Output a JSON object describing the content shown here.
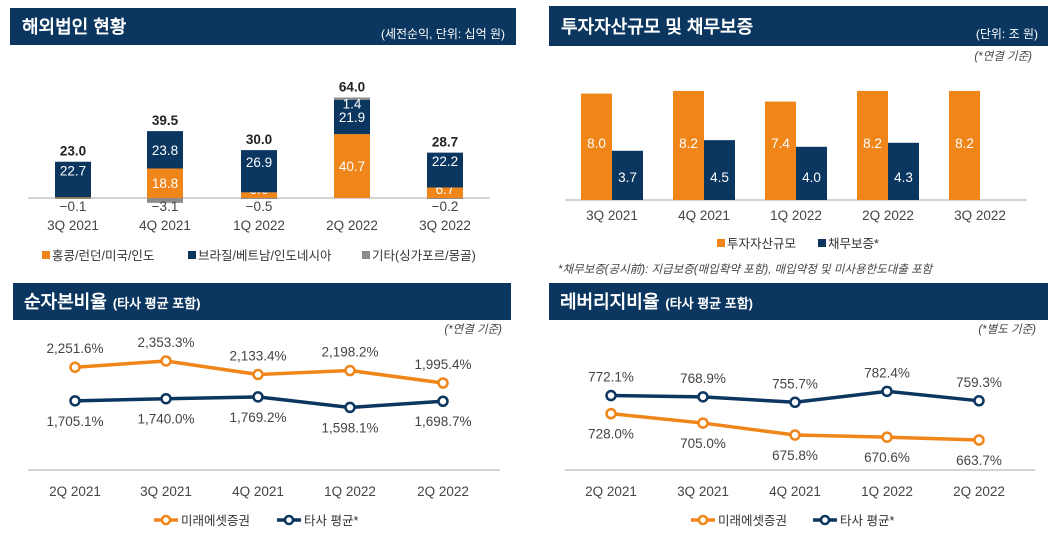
{
  "colors": {
    "orange": "#f0851a",
    "navy": "#0b365f",
    "gray": "#8c8c8c"
  },
  "chart_data": [
    {
      "type": "bar",
      "stacked": true,
      "title": "해외법인 현황",
      "subtitle": "(세전순익, 단위: 십억 원)",
      "categories": [
        "3Q 2021",
        "4Q 2021",
        "1Q 2022",
        "2Q 2022",
        "3Q 2022"
      ],
      "totals": [
        "23.0",
        "39.5",
        "30.0",
        "64.0",
        "28.7"
      ],
      "series": [
        {
          "name": "홍콩/런던/미국/인도",
          "color": "#f0851a",
          "values": [
            0.4,
            18.8,
            3.6,
            40.7,
            6.7
          ]
        },
        {
          "name": "브라질/베트남/인도네시아",
          "color": "#0b365f",
          "values": [
            22.7,
            23.8,
            26.9,
            21.9,
            22.2
          ]
        },
        {
          "name": "기타(싱가포르/몽골)",
          "color": "#8c8c8c",
          "values": [
            -0.1,
            -3.1,
            -0.5,
            1.4,
            -0.2
          ]
        }
      ]
    },
    {
      "type": "bar",
      "title": "투자자산규모 및 채무보증",
      "subtitle": "(단위: 조 원)",
      "note": "(*연결 기준)",
      "footnote": "*채무보증(공시前): 지급보증(매입확약 포함), 매입약정 및 미사용한도대출 포함",
      "categories": [
        "3Q 2021",
        "4Q 2021",
        "1Q 2022",
        "2Q 2022",
        "3Q 2022"
      ],
      "series": [
        {
          "name": "투자자산규모",
          "color": "#f0851a",
          "values": [
            8.0,
            8.2,
            7.4,
            8.2,
            8.2
          ]
        },
        {
          "name": "채무보증*",
          "color": "#0b365f",
          "values": [
            3.7,
            4.5,
            4.0,
            4.3,
            null
          ]
        }
      ]
    },
    {
      "type": "line",
      "title": "순자본비율",
      "title_suffix": "(타사 평균 포함)",
      "note": "(*연결 기준)",
      "categories": [
        "2Q 2021",
        "3Q 2021",
        "4Q 2021",
        "1Q 2022",
        "2Q 2022"
      ],
      "series": [
        {
          "name": "미래에셋증권",
          "color": "#f0851a",
          "values": [
            2251.6,
            2353.3,
            2133.4,
            2198.2,
            1995.4
          ],
          "labels": [
            "2,251.6%",
            "2,353.3%",
            "2,133.4%",
            "2,198.2%",
            "1,995.4%"
          ]
        },
        {
          "name": "타사 평균*",
          "color": "#0b365f",
          "values": [
            1705.1,
            1740.0,
            1769.2,
            1598.1,
            1698.7
          ],
          "labels": [
            "1,705.1%",
            "1,740.0%",
            "1,769.2%",
            "1,598.1%",
            "1,698.7%"
          ]
        }
      ]
    },
    {
      "type": "line",
      "title": "레버리지비율",
      "title_suffix": "(타사 평균 포함)",
      "note": "(*별도 기준)",
      "categories": [
        "2Q 2021",
        "3Q 2021",
        "4Q 2021",
        "1Q 2022",
        "2Q 2022"
      ],
      "series": [
        {
          "name": "미래에셋증권",
          "color": "#f0851a",
          "values": [
            728.0,
            705.0,
            675.8,
            670.6,
            663.7
          ],
          "labels": [
            "728.0%",
            "705.0%",
            "675.8%",
            "670.6%",
            "663.7%"
          ]
        },
        {
          "name": "타사 평균*",
          "color": "#0b365f",
          "values": [
            772.1,
            768.9,
            755.7,
            782.4,
            759.3
          ],
          "labels": [
            "772.1%",
            "768.9%",
            "755.7%",
            "782.4%",
            "759.3%"
          ]
        }
      ]
    }
  ]
}
